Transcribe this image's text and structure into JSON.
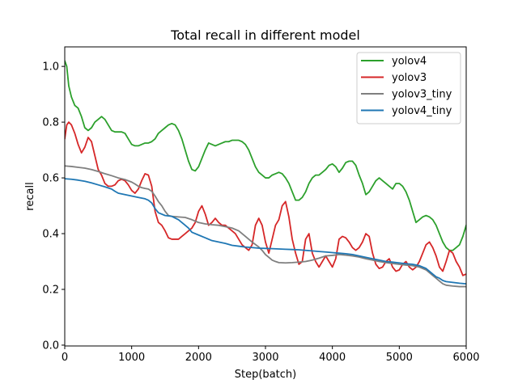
{
  "chart_data": {
    "type": "line",
    "title": "Total recall in different model",
    "xlabel": "Step(batch)",
    "ylabel": "recall",
    "xlim": [
      0,
      6000
    ],
    "ylim": [
      -0.003,
      1.07
    ],
    "xticks": [
      0,
      1000,
      2000,
      3000,
      4000,
      5000,
      6000
    ],
    "yticks": [
      0.0,
      0.2,
      0.4,
      0.6,
      0.8,
      1.0
    ],
    "xtick_labels": [
      "0",
      "1000",
      "2000",
      "3000",
      "4000",
      "5000",
      "6000"
    ],
    "ytick_labels": [
      "0.0",
      "0.2",
      "0.4",
      "0.6",
      "0.8",
      "1.0"
    ],
    "grid": false,
    "legend_position": "top-right",
    "series": [
      {
        "name": "yolov4",
        "color": "#2ca02c",
        "x": [
          0,
          30,
          60,
          100,
          150,
          200,
          250,
          300,
          350,
          400,
          450,
          500,
          550,
          600,
          650,
          700,
          750,
          800,
          850,
          900,
          950,
          1000,
          1050,
          1100,
          1150,
          1200,
          1250,
          1300,
          1350,
          1400,
          1450,
          1500,
          1550,
          1600,
          1650,
          1700,
          1750,
          1800,
          1850,
          1900,
          1950,
          2000,
          2050,
          2100,
          2150,
          2200,
          2250,
          2300,
          2350,
          2400,
          2450,
          2500,
          2550,
          2600,
          2650,
          2700,
          2750,
          2800,
          2850,
          2900,
          2950,
          3000,
          3050,
          3100,
          3150,
          3200,
          3250,
          3300,
          3350,
          3400,
          3450,
          3500,
          3550,
          3600,
          3650,
          3700,
          3750,
          3800,
          3850,
          3900,
          3950,
          4000,
          4050,
          4100,
          4150,
          4200,
          4250,
          4300,
          4350,
          4400,
          4450,
          4500,
          4550,
          4600,
          4650,
          4700,
          4750,
          4800,
          4850,
          4900,
          4950,
          5000,
          5050,
          5100,
          5150,
          5200,
          5250,
          5300,
          5350,
          5400,
          5450,
          5500,
          5550,
          5600,
          5650,
          5700,
          5750,
          5800,
          5850,
          5900,
          5950,
          6000
        ],
        "values": [
          1.02,
          1.0,
          0.93,
          0.89,
          0.86,
          0.85,
          0.82,
          0.78,
          0.77,
          0.78,
          0.8,
          0.81,
          0.82,
          0.81,
          0.79,
          0.77,
          0.765,
          0.765,
          0.765,
          0.76,
          0.74,
          0.72,
          0.715,
          0.715,
          0.72,
          0.725,
          0.725,
          0.73,
          0.74,
          0.76,
          0.77,
          0.78,
          0.79,
          0.795,
          0.79,
          0.77,
          0.74,
          0.7,
          0.66,
          0.63,
          0.625,
          0.64,
          0.67,
          0.7,
          0.725,
          0.72,
          0.715,
          0.72,
          0.725,
          0.73,
          0.73,
          0.735,
          0.735,
          0.735,
          0.73,
          0.72,
          0.7,
          0.67,
          0.64,
          0.62,
          0.61,
          0.6,
          0.6,
          0.61,
          0.615,
          0.62,
          0.615,
          0.6,
          0.58,
          0.55,
          0.52,
          0.52,
          0.53,
          0.55,
          0.58,
          0.6,
          0.61,
          0.61,
          0.62,
          0.63,
          0.645,
          0.65,
          0.64,
          0.62,
          0.635,
          0.655,
          0.66,
          0.66,
          0.645,
          0.61,
          0.58,
          0.54,
          0.55,
          0.57,
          0.59,
          0.6,
          0.59,
          0.58,
          0.57,
          0.56,
          0.58,
          0.58,
          0.57,
          0.55,
          0.52,
          0.48,
          0.44,
          0.45,
          0.46,
          0.465,
          0.46,
          0.45,
          0.43,
          0.4,
          0.37,
          0.35,
          0.34,
          0.34,
          0.35,
          0.36,
          0.39,
          0.43
        ]
      },
      {
        "name": "yolov3",
        "color": "#d62728",
        "x": [
          0,
          30,
          60,
          100,
          150,
          200,
          250,
          300,
          350,
          400,
          450,
          500,
          550,
          600,
          650,
          700,
          750,
          800,
          850,
          900,
          950,
          1000,
          1050,
          1100,
          1150,
          1200,
          1250,
          1300,
          1350,
          1400,
          1450,
          1500,
          1550,
          1600,
          1650,
          1700,
          1750,
          1800,
          1850,
          1900,
          1950,
          2000,
          2050,
          2100,
          2150,
          2200,
          2250,
          2300,
          2350,
          2400,
          2450,
          2500,
          2550,
          2600,
          2650,
          2700,
          2750,
          2800,
          2850,
          2900,
          2950,
          3000,
          3050,
          3100,
          3150,
          3200,
          3250,
          3300,
          3350,
          3400,
          3450,
          3500,
          3550,
          3600,
          3650,
          3700,
          3750,
          3800,
          3850,
          3900,
          3950,
          4000,
          4050,
          4100,
          4150,
          4200,
          4250,
          4300,
          4350,
          4400,
          4450,
          4500,
          4550,
          4600,
          4650,
          4700,
          4750,
          4800,
          4850,
          4900,
          4950,
          5000,
          5050,
          5100,
          5150,
          5200,
          5250,
          5300,
          5350,
          5400,
          5450,
          5500,
          5550,
          5600,
          5650,
          5700,
          5750,
          5800,
          5850,
          5900,
          5950,
          6000
        ],
        "values": [
          0.74,
          0.79,
          0.8,
          0.79,
          0.76,
          0.72,
          0.69,
          0.71,
          0.745,
          0.73,
          0.68,
          0.63,
          0.61,
          0.58,
          0.57,
          0.57,
          0.575,
          0.59,
          0.595,
          0.59,
          0.575,
          0.555,
          0.545,
          0.56,
          0.59,
          0.615,
          0.61,
          0.57,
          0.48,
          0.44,
          0.43,
          0.41,
          0.385,
          0.38,
          0.38,
          0.38,
          0.39,
          0.4,
          0.41,
          0.42,
          0.44,
          0.48,
          0.5,
          0.47,
          0.43,
          0.44,
          0.455,
          0.44,
          0.43,
          0.43,
          0.42,
          0.41,
          0.4,
          0.38,
          0.36,
          0.35,
          0.34,
          0.36,
          0.43,
          0.455,
          0.43,
          0.37,
          0.33,
          0.38,
          0.43,
          0.45,
          0.5,
          0.515,
          0.46,
          0.38,
          0.33,
          0.29,
          0.3,
          0.38,
          0.4,
          0.33,
          0.3,
          0.28,
          0.3,
          0.32,
          0.3,
          0.28,
          0.31,
          0.38,
          0.39,
          0.385,
          0.37,
          0.35,
          0.34,
          0.35,
          0.37,
          0.4,
          0.39,
          0.33,
          0.29,
          0.275,
          0.28,
          0.3,
          0.31,
          0.28,
          0.265,
          0.27,
          0.29,
          0.3,
          0.28,
          0.27,
          0.28,
          0.3,
          0.33,
          0.36,
          0.37,
          0.35,
          0.32,
          0.28,
          0.265,
          0.3,
          0.34,
          0.33,
          0.3,
          0.28,
          0.25,
          0.255
        ]
      },
      {
        "name": "yolov3_tiny",
        "color": "#7f7f7f",
        "x": [
          0,
          50,
          100,
          200,
          300,
          400,
          500,
          600,
          700,
          800,
          900,
          1000,
          1050,
          1100,
          1150,
          1200,
          1250,
          1300,
          1350,
          1400,
          1450,
          1500,
          1550,
          1600,
          1700,
          1800,
          1900,
          2000,
          2100,
          2200,
          2300,
          2400,
          2500,
          2600,
          2700,
          2800,
          2900,
          2950,
          3000,
          3050,
          3100,
          3150,
          3200,
          3300,
          3400,
          3500,
          3600,
          3700,
          3800,
          3900,
          4000,
          4100,
          4200,
          4300,
          4400,
          4500,
          4600,
          4700,
          4800,
          4900,
          5000,
          5100,
          5200,
          5300,
          5400,
          5450,
          5500,
          5550,
          5600,
          5650,
          5700,
          5800,
          5900,
          6000
        ],
        "values": [
          0.643,
          0.642,
          0.641,
          0.638,
          0.635,
          0.63,
          0.623,
          0.615,
          0.608,
          0.6,
          0.594,
          0.585,
          0.578,
          0.57,
          0.565,
          0.562,
          0.56,
          0.552,
          0.535,
          0.515,
          0.5,
          0.48,
          0.465,
          0.462,
          0.46,
          0.458,
          0.45,
          0.44,
          0.435,
          0.432,
          0.43,
          0.425,
          0.42,
          0.41,
          0.39,
          0.37,
          0.352,
          0.34,
          0.325,
          0.315,
          0.305,
          0.3,
          0.296,
          0.295,
          0.296,
          0.298,
          0.3,
          0.305,
          0.312,
          0.32,
          0.322,
          0.325,
          0.323,
          0.32,
          0.316,
          0.31,
          0.305,
          0.3,
          0.296,
          0.293,
          0.29,
          0.287,
          0.285,
          0.28,
          0.27,
          0.26,
          0.25,
          0.24,
          0.23,
          0.22,
          0.215,
          0.212,
          0.21,
          0.21
        ]
      },
      {
        "name": "yolov4_tiny",
        "color": "#1f77b4",
        "x": [
          0,
          100,
          200,
          300,
          400,
          500,
          600,
          700,
          750,
          800,
          900,
          1000,
          1100,
          1200,
          1250,
          1300,
          1350,
          1400,
          1500,
          1600,
          1700,
          1800,
          1850,
          1900,
          2000,
          2100,
          2200,
          2300,
          2400,
          2500,
          2600,
          2700,
          2800,
          2900,
          3000,
          3100,
          3200,
          3300,
          3400,
          3500,
          3600,
          3700,
          3800,
          3900,
          4000,
          4100,
          4200,
          4300,
          4400,
          4500,
          4600,
          4700,
          4800,
          4900,
          5000,
          5100,
          5200,
          5300,
          5400,
          5450,
          5500,
          5550,
          5600,
          5650,
          5700,
          5800,
          5900,
          6000
        ],
        "values": [
          0.597,
          0.595,
          0.592,
          0.588,
          0.582,
          0.575,
          0.568,
          0.56,
          0.552,
          0.545,
          0.54,
          0.535,
          0.53,
          0.525,
          0.52,
          0.51,
          0.49,
          0.475,
          0.465,
          0.462,
          0.45,
          0.43,
          0.42,
          0.405,
          0.395,
          0.385,
          0.375,
          0.37,
          0.365,
          0.358,
          0.355,
          0.352,
          0.35,
          0.348,
          0.347,
          0.346,
          0.345,
          0.344,
          0.343,
          0.342,
          0.34,
          0.338,
          0.336,
          0.334,
          0.332,
          0.33,
          0.328,
          0.325,
          0.32,
          0.315,
          0.31,
          0.305,
          0.3,
          0.298,
          0.295,
          0.292,
          0.29,
          0.285,
          0.275,
          0.265,
          0.255,
          0.245,
          0.24,
          0.232,
          0.228,
          0.225,
          0.222,
          0.22
        ]
      }
    ]
  }
}
